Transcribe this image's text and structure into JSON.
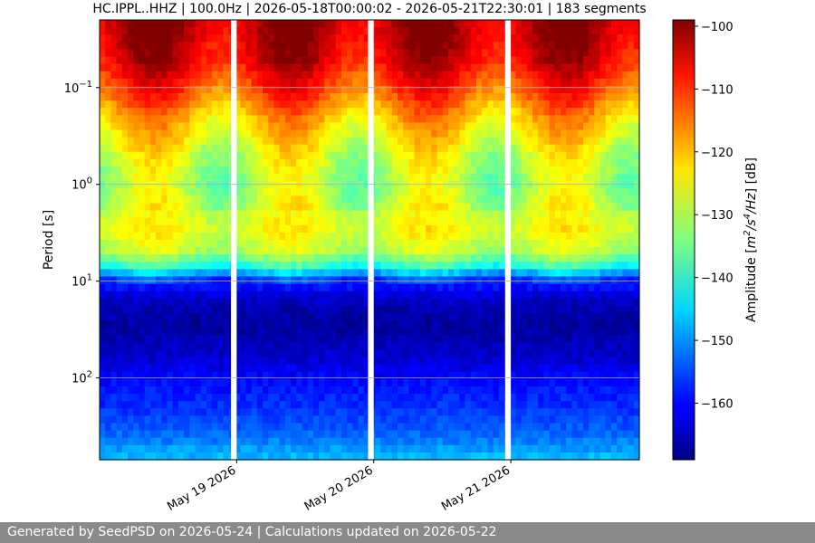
{
  "chart_data": {
    "type": "heatmap",
    "title": "HC.IPPL..HHZ | 100.0Hz | 2026-05-18T00:00:02 - 2026-05-21T22:30:01 | 183 segments",
    "ylabel": "Period [s]",
    "y_scale": "log",
    "y_inverted": true,
    "ylim": [
      0.02,
      700
    ],
    "y_ticks": [
      {
        "value": 0.1,
        "base": "10",
        "exp": "−1"
      },
      {
        "value": 1,
        "base": "10",
        "exp": "0"
      },
      {
        "value": 10,
        "base": "10",
        "exp": "1"
      },
      {
        "value": 100,
        "base": "10",
        "exp": "2"
      }
    ],
    "xlim": [
      "2026-05-18T00:00:02",
      "2026-05-21T22:30:01"
    ],
    "x_ticks": [
      {
        "value": "2026-05-19T00:00:00",
        "label": "May 19 2026"
      },
      {
        "value": "2026-05-20T00:00:00",
        "label": "May 20 2026"
      },
      {
        "value": "2026-05-21T00:00:00",
        "label": "May 21 2026"
      }
    ],
    "data_gaps": [
      [
        "2026-05-18T23:00:00",
        "2026-05-19T00:00:00"
      ],
      [
        "2026-05-19T23:00:00",
        "2026-05-20T00:00:00"
      ],
      [
        "2026-05-20T23:00:00",
        "2026-05-21T00:00:00"
      ]
    ],
    "grid": "horizontal",
    "colorbar": {
      "label": "Amplitude [m²/s⁴/Hz] [dB]",
      "label_base": "Amplitude [",
      "label_math": "m",
      "label_unit_1": "2",
      "label_unit_2": "/s",
      "label_unit_3": "4",
      "label_unit_4": "/Hz",
      "label_end": "] [dB]",
      "range": [
        -169,
        -99
      ],
      "ticks": [
        -100,
        -110,
        -120,
        -130,
        -140,
        -150,
        -160
      ],
      "colormap": "jet"
    },
    "profile": {
      "description_period_s": [
        0.02,
        0.05,
        0.1,
        0.2,
        0.5,
        1,
        3,
        5,
        7,
        10,
        15,
        20,
        30,
        60,
        100,
        200,
        350,
        700
      ],
      "amplitude_db": [
        -102,
        -105,
        -112,
        -120,
        -128,
        -131,
        -126,
        -130,
        -140,
        -157,
        -164,
        -166,
        -167,
        -164,
        -160,
        -157,
        -154,
        -147
      ]
    }
  },
  "footer": {
    "text": "Generated by SeedPSD on 2026-05-24 | Calculations updated on 2026-05-22"
  }
}
